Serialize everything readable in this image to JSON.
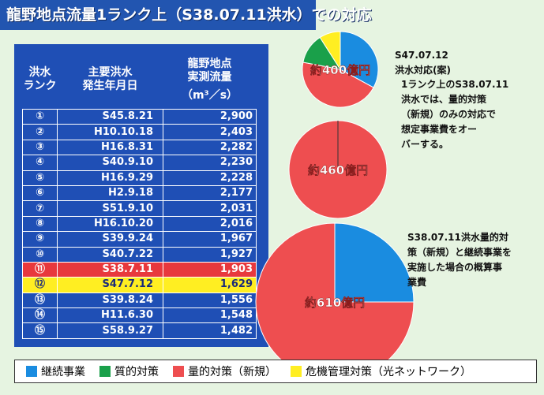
{
  "header": {
    "title": "龍野地点流量1ランク上（S38.07.11洪水）での対応"
  },
  "table": {
    "headers": [
      [
        "洪水",
        "ランク"
      ],
      [
        "主要洪水",
        "発生年月日"
      ],
      [
        "龍野地点",
        "実測流量",
        "（m³／s）"
      ]
    ],
    "rows": [
      {
        "rank": "①",
        "date": "S45.8.21",
        "flow": "2,900"
      },
      {
        "rank": "②",
        "date": "H10.10.18",
        "flow": "2,403"
      },
      {
        "rank": "③",
        "date": "H16.8.31",
        "flow": "2,282"
      },
      {
        "rank": "④",
        "date": "S40.9.10",
        "flow": "2,230"
      },
      {
        "rank": "⑤",
        "date": "H16.9.29",
        "flow": "2,228"
      },
      {
        "rank": "⑥",
        "date": "H2.9.18",
        "flow": "2,177"
      },
      {
        "rank": "⑦",
        "date": "S51.9.10",
        "flow": "2,031"
      },
      {
        "rank": "⑧",
        "date": "H16.10.20",
        "flow": "2,016"
      },
      {
        "rank": "⑨",
        "date": "S39.9.24",
        "flow": "1,967"
      },
      {
        "rank": "⑩",
        "date": "S40.7.22",
        "flow": "1,927"
      },
      {
        "rank": "⑪",
        "date": "S38.7.11",
        "flow": "1,903",
        "bg": "#e8383d",
        "fg": "#ffffff"
      },
      {
        "rank": "⑫",
        "date": "S47.7.12",
        "flow": "1,629",
        "bg": "#ffee22",
        "fg": "#1a2a7a"
      },
      {
        "rank": "⑬",
        "date": "S39.8.24",
        "flow": "1,556"
      },
      {
        "rank": "⑭",
        "date": "H11.6.30",
        "flow": "1,548"
      },
      {
        "rank": "⑮",
        "date": "S58.9.27",
        "flow": "1,482"
      }
    ]
  },
  "legend": [
    {
      "name": "継続事業",
      "color": "#1a8ce0"
    },
    {
      "name": "質的対策",
      "color": "#1aa04a"
    },
    {
      "name": "量的対策（新規）",
      "color": "#ee4e50"
    },
    {
      "name": "危機管理対策（光ネットワーク）",
      "color": "#ffee22"
    }
  ],
  "pies": [
    {
      "label": "約400億円",
      "values": [
        33,
        13,
        45,
        9
      ],
      "note": [
        "S47.07.12",
        "洪水対応(案)"
      ]
    },
    {
      "label": "約460億円",
      "values": [
        0,
        0,
        100,
        0
      ],
      "note": [
        "1ランク上のS38.07.11",
        "洪水では、量的対策",
        "（新規）のみの対応で",
        "想定事業費をオー",
        "バーする。"
      ]
    },
    {
      "label": "約610億円",
      "values": [
        25,
        0,
        75,
        0
      ],
      "note": [
        "S38.07.11洪水量的対",
        "策（新規）と継続事業を",
        "実施した場合の概算事",
        "業費"
      ]
    }
  ]
}
